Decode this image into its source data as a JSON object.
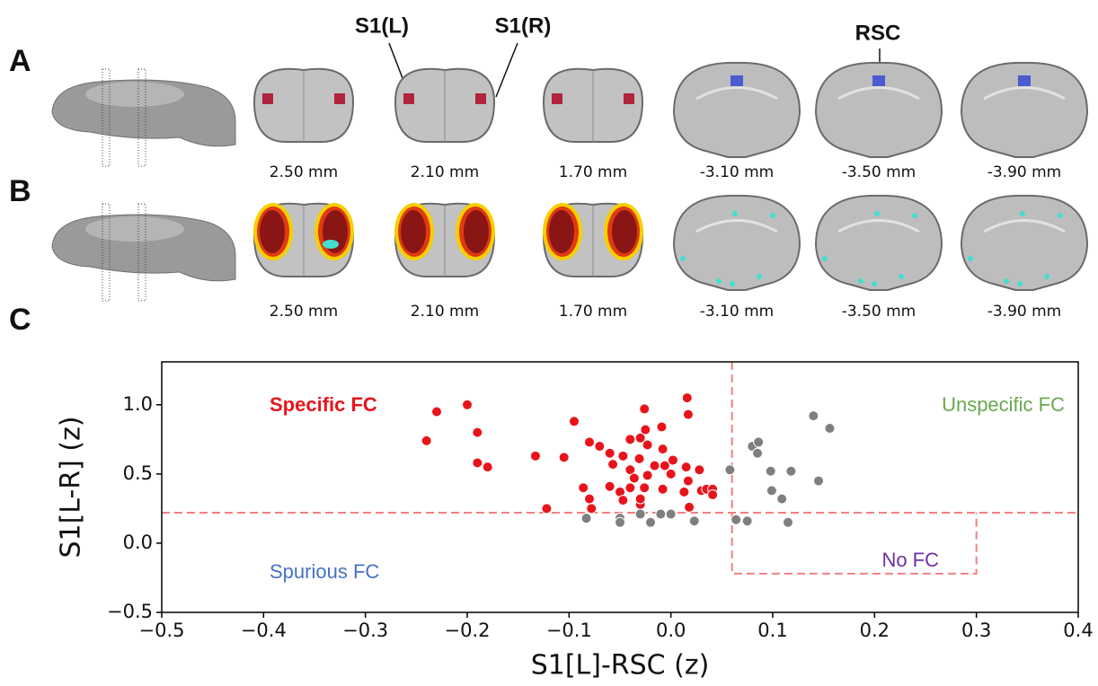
{
  "panel_a": {
    "label": "A",
    "roi_labels": [
      "S1(L)",
      "S1(R)",
      "RSC"
    ],
    "slice_labels": [
      "2.50 mm",
      "2.10 mm",
      "1.70 mm",
      "-3.10 mm",
      "-3.50 mm",
      "-3.90 mm"
    ]
  },
  "panel_b": {
    "label": "B",
    "slice_labels": [
      "2.50 mm",
      "2.10 mm",
      "1.70 mm",
      "-3.10 mm",
      "-3.50 mm",
      "-3.90 mm"
    ]
  },
  "panel_c": {
    "label": "C"
  },
  "chart_data": {
    "type": "scatter",
    "x_label": "S1[L]-RSC (z)",
    "y_label": "S1[L-R] (z)",
    "xlim": [
      -0.5,
      0.4
    ],
    "ylim": [
      -0.5,
      1.31
    ],
    "xticks": [
      {
        "value": -0.5,
        "label": "−0.5"
      },
      {
        "value": -0.4,
        "label": "−0.4"
      },
      {
        "value": -0.3,
        "label": "−0.3"
      },
      {
        "value": -0.2,
        "label": "−0.2"
      },
      {
        "value": -0.1,
        "label": "−0.1"
      },
      {
        "value": 0,
        "label": "0.0"
      },
      0.1,
      0.2,
      0.3,
      0.4
    ],
    "yticks": [
      {
        "value": -0.5,
        "label": "−0.5"
      },
      {
        "value": 0,
        "label": "0.0"
      },
      0.5,
      {
        "value": 1,
        "label": "1.0"
      }
    ],
    "reference_lines": {
      "x": 0.06,
      "y": 0.22,
      "color": "#f08080",
      "box_x": [
        0.06,
        0.3
      ],
      "box_y": [
        -0.22,
        0.22
      ]
    },
    "annotations": [
      {
        "text": "Specific FC",
        "color": "#e8141b"
      },
      {
        "text": "Unspecific FC",
        "color": "#6aa84f"
      },
      {
        "text": "Spurious FC",
        "color": "#4472c4"
      },
      {
        "text": "No FC",
        "color": "#7030a0"
      }
    ],
    "series": [
      {
        "color": "#e8141b",
        "x": [
          -0.24,
          -0.23,
          -0.2,
          -0.19,
          -0.19,
          -0.18,
          -0.133,
          -0.122,
          -0.105,
          -0.095,
          -0.08,
          -0.086,
          -0.08,
          -0.078,
          -0.07,
          -0.06,
          -0.06,
          -0.057,
          -0.05,
          -0.047,
          -0.047,
          -0.04,
          -0.04,
          -0.04,
          -0.036,
          -0.03,
          -0.03,
          -0.031,
          -0.025,
          -0.023,
          -0.03,
          -0.016,
          -0.026,
          -0.008,
          -0.008,
          0.002,
          -0.026,
          -0.009,
          0.016,
          0.017,
          0.015,
          0.017,
          0.013,
          0.018,
          0.028,
          0.03,
          0.035,
          0.041,
          0.041,
          -0.023,
          -0.006,
          0.0
        ],
        "values": [
          0.74,
          0.95,
          1.0,
          0.8,
          0.58,
          0.55,
          0.63,
          0.25,
          0.62,
          0.88,
          0.73,
          0.4,
          0.32,
          0.25,
          0.7,
          0.65,
          0.41,
          0.57,
          0.37,
          0.63,
          0.31,
          0.4,
          0.75,
          0.53,
          0.47,
          0.28,
          0.76,
          0.61,
          0.82,
          0.71,
          0.32,
          0.56,
          0.4,
          0.68,
          0.39,
          0.6,
          0.97,
          0.84,
          1.05,
          0.93,
          0.55,
          0.45,
          0.37,
          0.26,
          0.53,
          0.38,
          0.39,
          0.39,
          0.35,
          0.49,
          0.56,
          0.5
        ]
      },
      {
        "color": "#7f7f7f",
        "x": [
          -0.083,
          -0.05,
          -0.03,
          -0.05,
          -0.02,
          -0.01,
          0.0,
          0.023,
          0.058,
          0.064,
          0.075,
          0.08,
          0.086,
          0.085,
          0.098,
          0.099,
          0.109,
          0.118,
          0.115,
          0.14,
          0.145,
          0.156
        ],
        "values": [
          0.18,
          0.18,
          0.21,
          0.15,
          0.15,
          0.21,
          0.21,
          0.16,
          0.53,
          0.17,
          0.16,
          0.7,
          0.73,
          0.65,
          0.52,
          0.38,
          0.32,
          0.52,
          0.15,
          0.92,
          0.45,
          0.83
        ]
      }
    ]
  }
}
